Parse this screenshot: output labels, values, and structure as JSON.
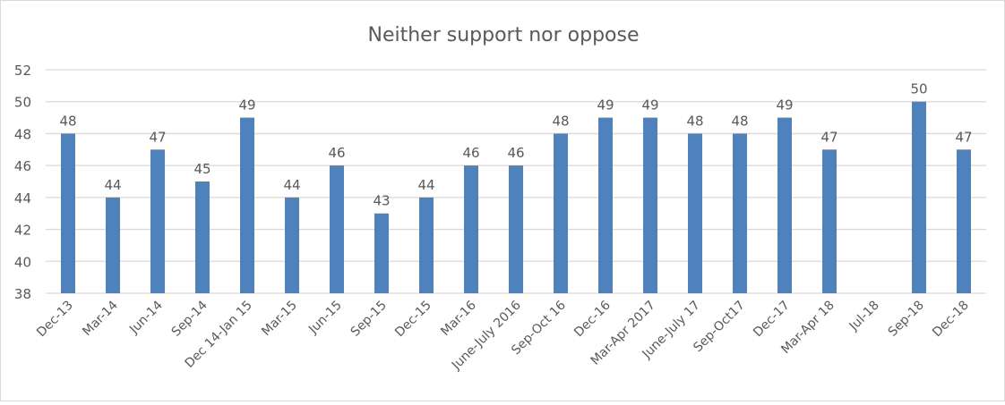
{
  "chart_data": {
    "type": "bar",
    "title": "Neither support nor oppose",
    "xlabel": "",
    "ylabel": "",
    "ylim": [
      38,
      52
    ],
    "yticks": [
      38,
      40,
      42,
      44,
      46,
      48,
      50,
      52
    ],
    "grid": true,
    "legend": null,
    "bar_color": "#4F81BD",
    "categories": [
      "Dec-13",
      "Mar-14",
      "Jun-14",
      "Sep-14",
      "Dec 14-Jan 15",
      "Mar-15",
      "Jun-15",
      "Sep-15",
      "Dec-15",
      "Mar-16",
      "June-July 2016",
      "Sep-Oct 16",
      "Dec-16",
      "Mar-Apr 2017",
      "June-July 17",
      "Sep-Oct17",
      "Dec-17",
      "Mar-Apr 18",
      "Jul-18",
      "Sep-18",
      "Dec-18"
    ],
    "values": [
      48,
      44,
      47,
      45,
      49,
      44,
      46,
      43,
      44,
      46,
      46,
      48,
      49,
      49,
      48,
      48,
      49,
      47,
      null,
      50,
      47
    ]
  },
  "colors": {
    "bar": "#4F81BD",
    "grid": "#d9d9d9",
    "text": "#595959",
    "title": "#595959"
  }
}
